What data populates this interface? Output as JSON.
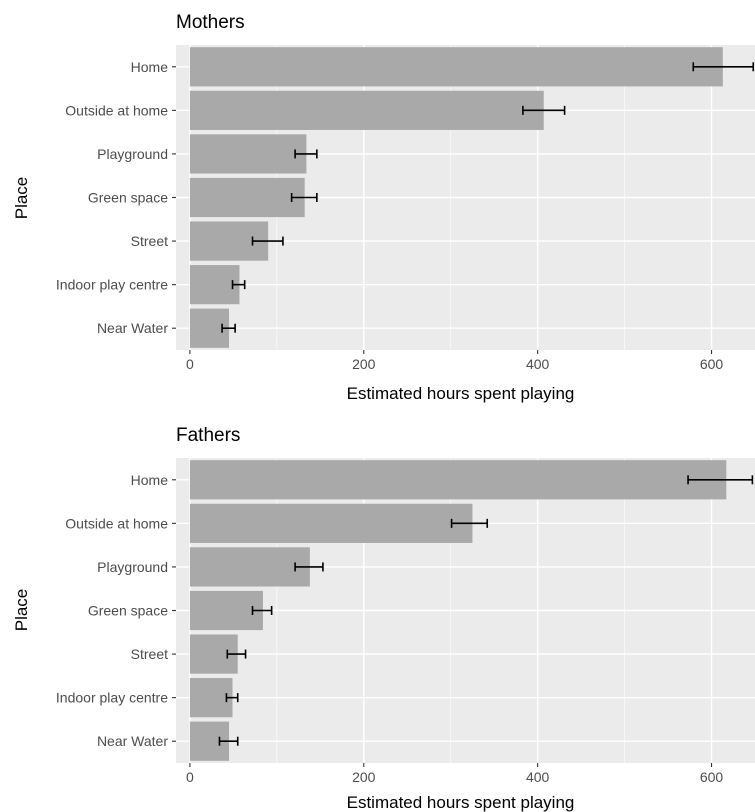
{
  "chart_data": [
    {
      "type": "bar",
      "orientation": "horizontal",
      "title": "Mothers",
      "xlabel": "Estimated hours spent playing",
      "ylabel": "Place",
      "xlim": [
        -16,
        650
      ],
      "xticks": [
        0,
        200,
        400,
        600
      ],
      "grid": true,
      "categories": [
        "Home",
        "Outside at home",
        "Playground",
        "Green space",
        "Street",
        "Indoor play centre",
        "Near Water"
      ],
      "values": [
        613,
        407,
        134,
        132,
        90,
        57,
        45
      ],
      "error_low": [
        579,
        383,
        121,
        117,
        72,
        49,
        37
      ],
      "error_high": [
        648,
        431,
        146,
        146,
        107,
        63,
        52
      ]
    },
    {
      "type": "bar",
      "orientation": "horizontal",
      "title": "Fathers",
      "xlabel": "Estimated hours spent playing",
      "ylabel": "Place",
      "xlim": [
        -16,
        650
      ],
      "xticks": [
        0,
        200,
        400,
        600
      ],
      "grid": true,
      "categories": [
        "Home",
        "Outside at home",
        "Playground",
        "Green space",
        "Street",
        "Indoor play centre",
        "Near Water"
      ],
      "values": [
        617,
        325,
        138,
        84,
        55,
        49,
        45
      ],
      "error_low": [
        573,
        301,
        121,
        72,
        43,
        42,
        34
      ],
      "error_high": [
        647,
        342,
        153,
        94,
        64,
        55,
        55
      ]
    }
  ]
}
